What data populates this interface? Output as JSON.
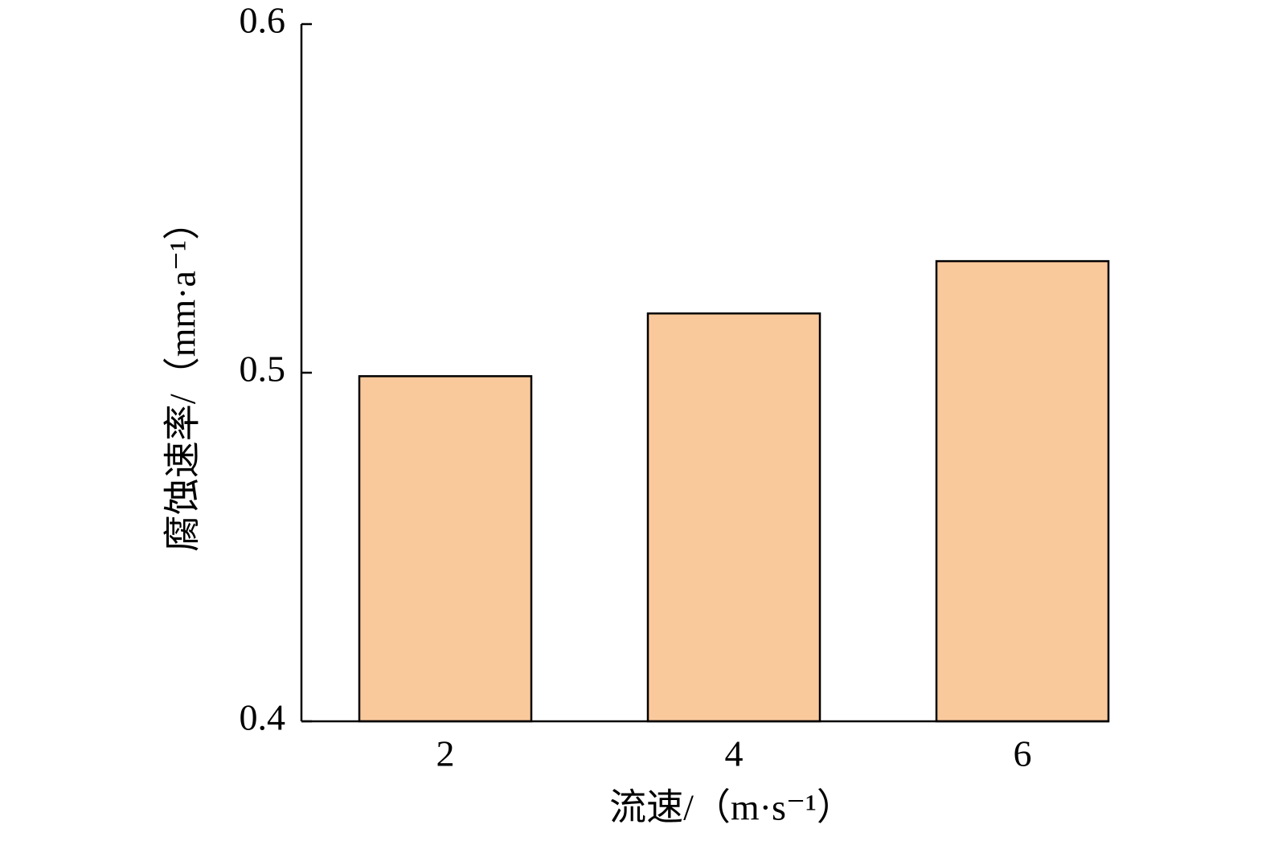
{
  "chart_data": {
    "type": "bar",
    "xlabel": "流速/（m·s⁻¹）",
    "ylabel": "腐蚀速率/（mm·a⁻¹）",
    "categories": [
      "2",
      "4",
      "6"
    ],
    "values": [
      0.499,
      0.517,
      0.532
    ],
    "color": "#fac99b",
    "ylim": [
      0.4,
      0.6
    ],
    "yticks": [
      0.4,
      0.5,
      0.6
    ],
    "grid": false
  }
}
